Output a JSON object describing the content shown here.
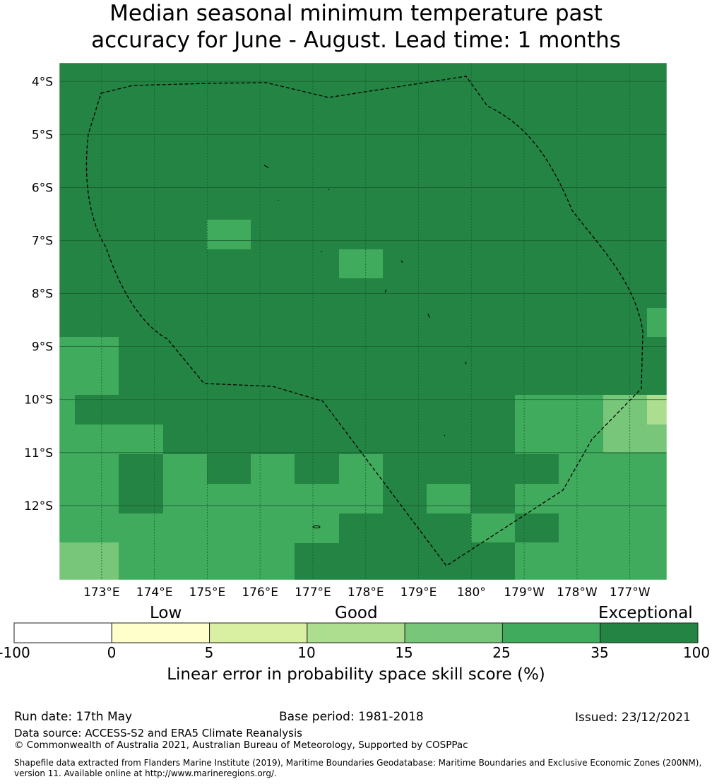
{
  "title": {
    "line1": "Median seasonal minimum temperature past",
    "line2": "accuracy for June - August. Lead time: 1 months"
  },
  "map": {
    "lat_labels": [
      "4°S",
      "5°S",
      "6°S",
      "7°S",
      "8°S",
      "9°S",
      "10°S",
      "11°S",
      "12°S"
    ],
    "lon_labels": [
      "173°E",
      "174°E",
      "175°E",
      "176°E",
      "177°E",
      "178°E",
      "179°E",
      "180°",
      "179°W",
      "178°W",
      "177°W"
    ],
    "lat_values": [
      -4,
      -5,
      -6,
      -7,
      -8,
      -9,
      -10,
      -11,
      -12
    ],
    "lon_values": [
      173,
      174,
      175,
      176,
      177,
      178,
      179,
      180,
      181,
      182,
      183
    ],
    "lon_range": [
      172.2,
      183.7
    ],
    "lat_range": [
      -13.4,
      -3.65
    ],
    "cell_size_deg": 0.833,
    "boundary": "dashed EEZ outline",
    "grid": true
  },
  "colorbar": {
    "categories": [
      "Low",
      "Good",
      "Exceptional"
    ],
    "ticks": [
      "-100",
      "0",
      "5",
      "10",
      "15",
      "25",
      "35",
      "100"
    ],
    "colors": [
      "#ffffff",
      "#ffffcc",
      "#d9f0a3",
      "#addd8e",
      "#78c679",
      "#41ab5d",
      "#238443"
    ],
    "label": "Linear error in probability space skill score (%)"
  },
  "footer": {
    "run_date": "Run date: 17th May",
    "base_period": "Base period: 1981-2018",
    "issued": "Issued: 23/12/2021",
    "data_source": "Data source: ACCESS-S2 and ERA5 Climate Reanalysis",
    "copyright": "© Commonwealth of Australia 2021, Australian Bureau of Meteorology, Supported by COSPPac",
    "shapefile_line1": "Shapefile data extracted from Flanders Marine Institute (2019), Maritime Boundaries Geodatabase: Maritime Boundaries and Exclusive Economic Zones (200NM),",
    "shapefile_line2": "version 11. Available online at http://www.marineregions.org/."
  }
}
